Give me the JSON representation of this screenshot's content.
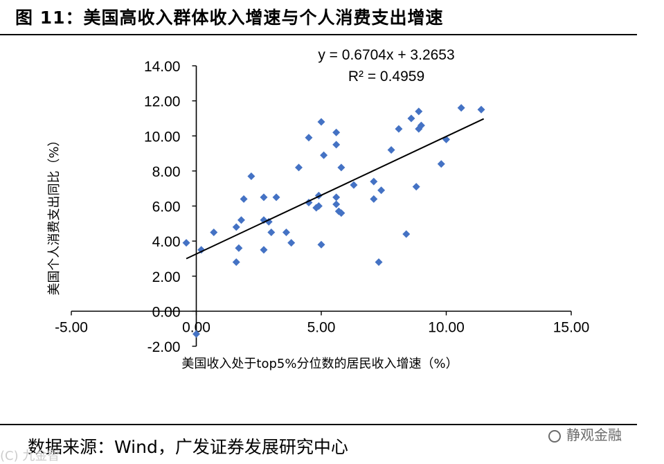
{
  "header": {
    "title": "图 11：美国高收入群体收入增速与个人消费支出增速"
  },
  "footer": {
    "source": "数据来源：Wind，广发证券发展研究中心",
    "watermark": "静观金融",
    "corner_mark": "(C) 九金智"
  },
  "chart_data": {
    "type": "scatter",
    "xlabel": "美国收入处于top5%分位数的居民收入增速（%）",
    "ylabel": "美国个人消费支出同比（%）",
    "xlim": [
      -5,
      15
    ],
    "ylim": [
      -2,
      14
    ],
    "x_ticks": [
      "-5.00",
      "0.00",
      "5.00",
      "10.00",
      "15.00"
    ],
    "y_ticks": [
      "-2.00",
      "0.00",
      "2.00",
      "4.00",
      "6.00",
      "8.00",
      "10.00",
      "12.00",
      "14.00"
    ],
    "grid": false,
    "legend": "none",
    "marker_color": "#4472c4",
    "trendline": {
      "equation": "y = 0.6704x + 3.2653",
      "r_squared": "R² = 0.4959",
      "slope": 0.6704,
      "intercept": 3.2653,
      "x_range": [
        -0.4,
        11.5
      ]
    },
    "points": [
      {
        "x": -0.4,
        "y": 3.9
      },
      {
        "x": 0.2,
        "y": 3.5
      },
      {
        "x": 0.7,
        "y": 4.5
      },
      {
        "x": 0.0,
        "y": -1.3
      },
      {
        "x": 1.6,
        "y": 2.8
      },
      {
        "x": 1.7,
        "y": 3.6
      },
      {
        "x": 1.6,
        "y": 4.8
      },
      {
        "x": 1.8,
        "y": 5.2
      },
      {
        "x": 1.9,
        "y": 6.4
      },
      {
        "x": 2.2,
        "y": 7.7
      },
      {
        "x": 2.7,
        "y": 6.5
      },
      {
        "x": 2.7,
        "y": 5.2
      },
      {
        "x": 2.7,
        "y": 3.5
      },
      {
        "x": 2.9,
        "y": 5.1
      },
      {
        "x": 3.0,
        "y": 4.5
      },
      {
        "x": 3.2,
        "y": 6.5
      },
      {
        "x": 3.6,
        "y": 4.5
      },
      {
        "x": 3.8,
        "y": 3.9
      },
      {
        "x": 4.1,
        "y": 8.2
      },
      {
        "x": 4.5,
        "y": 9.9
      },
      {
        "x": 4.5,
        "y": 6.2
      },
      {
        "x": 4.8,
        "y": 5.9
      },
      {
        "x": 4.9,
        "y": 6.0
      },
      {
        "x": 4.9,
        "y": 6.6
      },
      {
        "x": 5.0,
        "y": 10.8
      },
      {
        "x": 5.0,
        "y": 3.8
      },
      {
        "x": 5.1,
        "y": 8.9
      },
      {
        "x": 5.6,
        "y": 10.2
      },
      {
        "x": 5.6,
        "y": 9.5
      },
      {
        "x": 5.6,
        "y": 6.5
      },
      {
        "x": 5.6,
        "y": 6.1
      },
      {
        "x": 5.7,
        "y": 5.7
      },
      {
        "x": 5.8,
        "y": 5.6
      },
      {
        "x": 5.8,
        "y": 8.2
      },
      {
        "x": 6.3,
        "y": 7.2
      },
      {
        "x": 7.1,
        "y": 7.4
      },
      {
        "x": 7.1,
        "y": 6.4
      },
      {
        "x": 7.3,
        "y": 2.8
      },
      {
        "x": 7.4,
        "y": 6.9
      },
      {
        "x": 7.8,
        "y": 9.2
      },
      {
        "x": 8.1,
        "y": 10.4
      },
      {
        "x": 8.4,
        "y": 4.4
      },
      {
        "x": 8.6,
        "y": 11.0
      },
      {
        "x": 8.8,
        "y": 7.1
      },
      {
        "x": 8.9,
        "y": 11.4
      },
      {
        "x": 8.9,
        "y": 10.4
      },
      {
        "x": 9.0,
        "y": 10.6
      },
      {
        "x": 9.8,
        "y": 8.4
      },
      {
        "x": 10.0,
        "y": 9.8
      },
      {
        "x": 10.6,
        "y": 11.6
      },
      {
        "x": 11.4,
        "y": 11.5
      }
    ]
  }
}
